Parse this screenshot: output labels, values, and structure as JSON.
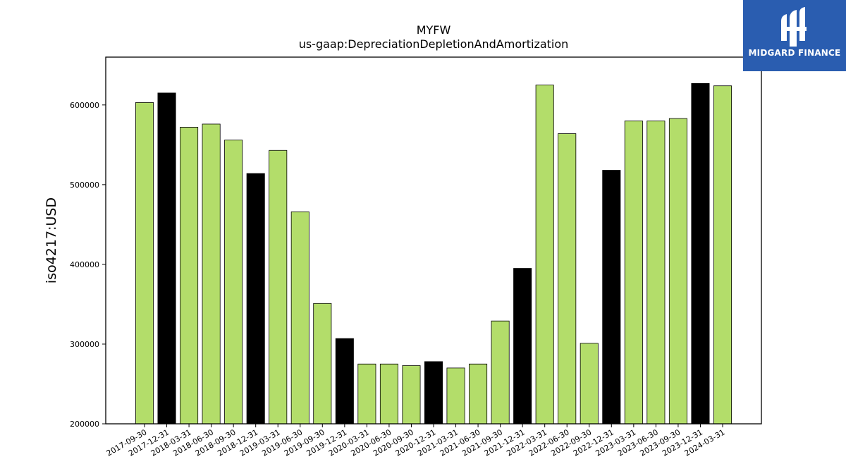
{
  "logo": {
    "text": "MIDGARD FINANCE"
  },
  "colors": {
    "green": "#b3dd6a",
    "black": "#000000"
  },
  "chart_data": {
    "type": "bar",
    "title": "MYFW",
    "subtitle": "us-gaap:DepreciationDepletionAndAmortization",
    "ylabel": "iso4217:USD",
    "xlabel": "",
    "ylim": [
      200000,
      660000
    ],
    "yticks": [
      200000,
      300000,
      400000,
      500000,
      600000
    ],
    "grid": false,
    "categories": [
      "2017-09-30",
      "2017-12-31",
      "2018-03-31",
      "2018-06-30",
      "2018-09-30",
      "2018-12-31",
      "2019-03-31",
      "2019-06-30",
      "2019-09-30",
      "2019-12-31",
      "2020-03-31",
      "2020-06-30",
      "2020-09-30",
      "2020-12-31",
      "2021-03-31",
      "2021-06-30",
      "2021-09-30",
      "2021-12-31",
      "2022-03-31",
      "2022-06-30",
      "2022-09-30",
      "2022-12-31",
      "2023-03-31",
      "2023-06-30",
      "2023-09-30",
      "2023-12-31",
      "2024-03-31"
    ],
    "values": [
      603000,
      615000,
      572000,
      576000,
      556000,
      514000,
      543000,
      466000,
      351000,
      307000,
      275000,
      275000,
      273000,
      278000,
      270000,
      275000,
      329000,
      395000,
      625000,
      564000,
      301000,
      518000,
      580000,
      580000,
      583000,
      627000,
      624000
    ],
    "bar_colors": [
      "green",
      "black",
      "green",
      "green",
      "green",
      "black",
      "green",
      "green",
      "green",
      "black",
      "green",
      "green",
      "green",
      "black",
      "green",
      "green",
      "green",
      "black",
      "green",
      "green",
      "green",
      "black",
      "green",
      "green",
      "green",
      "black",
      "green"
    ]
  }
}
